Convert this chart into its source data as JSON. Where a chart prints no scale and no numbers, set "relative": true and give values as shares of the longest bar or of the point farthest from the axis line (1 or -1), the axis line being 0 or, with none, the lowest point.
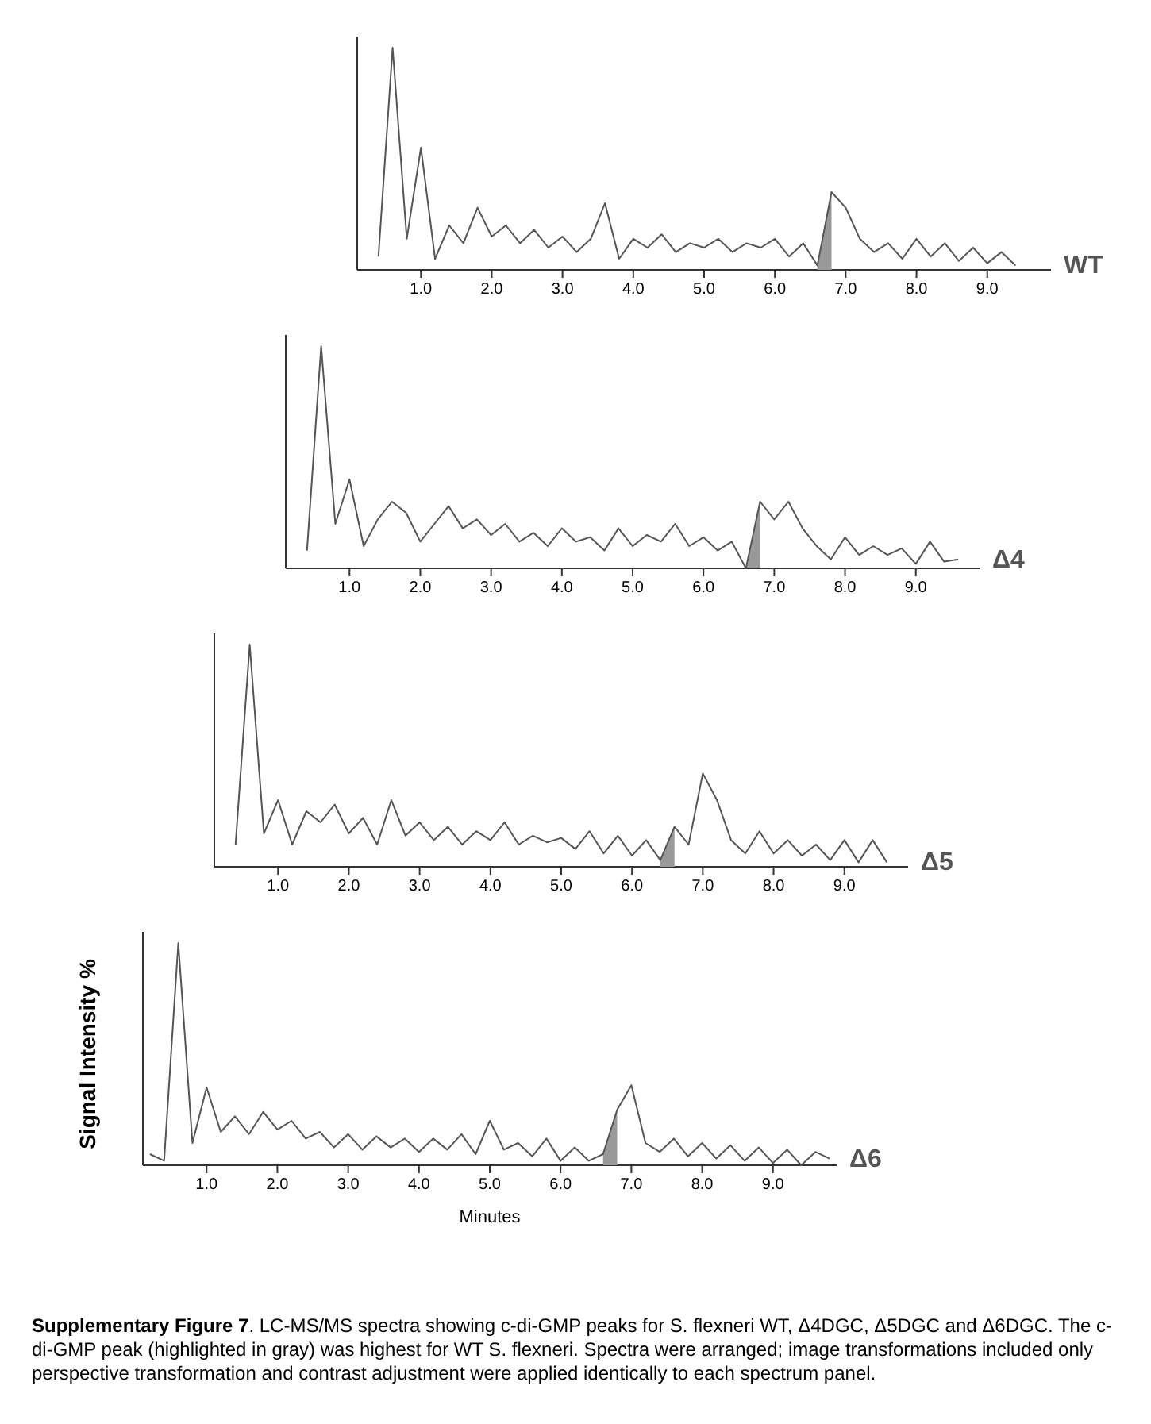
{
  "chart_data": [
    {
      "type": "line",
      "relative": true,
      "xlim": [
        0.1,
        9.9
      ],
      "xticks": [
        {
          "value": 1,
          "label": "1.0"
        },
        {
          "value": 2,
          "label": "2.0"
        },
        {
          "value": 3,
          "label": "3.0"
        },
        {
          "value": 4,
          "label": "4.0"
        },
        {
          "value": 5,
          "label": "5.0"
        },
        {
          "value": 6,
          "label": "6.0"
        },
        {
          "value": 7,
          "label": "7.0"
        },
        {
          "value": 8,
          "label": "8.0"
        },
        {
          "value": 9,
          "label": "9.0"
        }
      ],
      "x": [
        0.4,
        0.6,
        0.8,
        1.0,
        1.2,
        1.4,
        1.6,
        1.8,
        2.0,
        2.2,
        2.4,
        2.6,
        2.8,
        3.0,
        3.2,
        3.4,
        3.6,
        3.8,
        4.0,
        4.2,
        4.4,
        4.6,
        4.8,
        5.0,
        5.2,
        5.4,
        5.6,
        5.8,
        6.0,
        6.2,
        6.4,
        6.6,
        6.8,
        7.0,
        7.2,
        7.4,
        7.6,
        7.8,
        8.0,
        8.2,
        8.4,
        8.6,
        8.8,
        9.0,
        9.2,
        9.4
      ],
      "series": [
        {
          "name": "WT",
          "color": "#555555",
          "values": [
            0.06,
            1.0,
            0.14,
            0.55,
            0.05,
            0.2,
            0.12,
            0.28,
            0.15,
            0.2,
            0.12,
            0.18,
            0.1,
            0.15,
            0.08,
            0.14,
            0.3,
            0.05,
            0.14,
            0.1,
            0.16,
            0.08,
            0.12,
            0.1,
            0.14,
            0.08,
            0.12,
            0.1,
            0.14,
            0.06,
            0.12,
            0.02,
            0.35,
            0.28,
            0.14,
            0.08,
            0.12,
            0.05,
            0.14,
            0.06,
            0.12,
            0.04,
            0.1,
            0.03,
            0.08,
            0.02
          ]
        },
        {
          "type": "area",
          "color": "#999999",
          "x": [
            6.6,
            6.8
          ],
          "values": [
            0.02,
            0.35
          ]
        }
      ]
    },
    {
      "type": "line",
      "relative": true,
      "xlim": [
        0.1,
        9.9
      ],
      "xticks": [
        {
          "value": 1,
          "label": "1.0"
        },
        {
          "value": 2,
          "label": "2.0"
        },
        {
          "value": 3,
          "label": "3.0"
        },
        {
          "value": 4,
          "label": "4.0"
        },
        {
          "value": 5,
          "label": "5.0"
        },
        {
          "value": 6,
          "label": "6.0"
        },
        {
          "value": 7,
          "label": "7.0"
        },
        {
          "value": 8,
          "label": "8.0"
        },
        {
          "value": 9,
          "label": "9.0"
        }
      ],
      "x": [
        0.4,
        0.6,
        0.8,
        1.0,
        1.2,
        1.4,
        1.6,
        1.8,
        2.0,
        2.2,
        2.4,
        2.6,
        2.8,
        3.0,
        3.2,
        3.4,
        3.6,
        3.8,
        4.0,
        4.2,
        4.4,
        4.6,
        4.8,
        5.0,
        5.2,
        5.4,
        5.6,
        5.8,
        6.0,
        6.2,
        6.4,
        6.6,
        6.8,
        7.0,
        7.2,
        7.4,
        7.6,
        7.8,
        8.0,
        8.2,
        8.4,
        8.6,
        8.8,
        9.0,
        9.2,
        9.4,
        9.6
      ],
      "series": [
        {
          "name": "Δ4",
          "color": "#555555",
          "values": [
            0.08,
            1.0,
            0.2,
            0.4,
            0.1,
            0.22,
            0.3,
            0.25,
            0.12,
            0.2,
            0.28,
            0.18,
            0.22,
            0.15,
            0.2,
            0.12,
            0.16,
            0.1,
            0.18,
            0.12,
            0.14,
            0.08,
            0.18,
            0.1,
            0.15,
            0.12,
            0.2,
            0.1,
            0.14,
            0.08,
            0.12,
            0.0,
            0.3,
            0.22,
            0.3,
            0.18,
            0.1,
            0.04,
            0.14,
            0.06,
            0.1,
            0.06,
            0.09,
            0.02,
            0.12,
            0.03,
            0.04
          ]
        },
        {
          "type": "area",
          "color": "#999999",
          "x": [
            6.6,
            6.8
          ],
          "values": [
            0.0,
            0.3
          ]
        }
      ]
    },
    {
      "type": "line",
      "relative": true,
      "xlim": [
        0.1,
        9.9
      ],
      "xticks": [
        {
          "value": 1,
          "label": "1.0"
        },
        {
          "value": 2,
          "label": "2.0"
        },
        {
          "value": 3,
          "label": "3.0"
        },
        {
          "value": 4,
          "label": "4.0"
        },
        {
          "value": 5,
          "label": "5.0"
        },
        {
          "value": 6,
          "label": "6.0"
        },
        {
          "value": 7,
          "label": "7.0"
        },
        {
          "value": 8,
          "label": "8.0"
        },
        {
          "value": 9,
          "label": "9.0"
        }
      ],
      "x": [
        0.4,
        0.6,
        0.8,
        1.0,
        1.2,
        1.4,
        1.6,
        1.8,
        2.0,
        2.2,
        2.4,
        2.6,
        2.8,
        3.0,
        3.2,
        3.4,
        3.6,
        3.8,
        4.0,
        4.2,
        4.4,
        4.6,
        4.8,
        5.0,
        5.2,
        5.4,
        5.6,
        5.8,
        6.0,
        6.2,
        6.4,
        6.6,
        6.8,
        7.0,
        7.2,
        7.4,
        7.6,
        7.8,
        8.0,
        8.2,
        8.4,
        8.6,
        8.8,
        9.0,
        9.2,
        9.4,
        9.6
      ],
      "series": [
        {
          "name": "Δ5",
          "color": "#555555",
          "values": [
            0.1,
            1.0,
            0.15,
            0.3,
            0.1,
            0.25,
            0.2,
            0.28,
            0.15,
            0.22,
            0.1,
            0.3,
            0.14,
            0.2,
            0.12,
            0.18,
            0.1,
            0.16,
            0.12,
            0.2,
            0.1,
            0.14,
            0.11,
            0.13,
            0.08,
            0.16,
            0.06,
            0.14,
            0.05,
            0.12,
            0.03,
            0.18,
            0.1,
            0.42,
            0.3,
            0.12,
            0.06,
            0.16,
            0.06,
            0.12,
            0.05,
            0.1,
            0.03,
            0.12,
            0.02,
            0.12,
            0.02
          ]
        },
        {
          "type": "area",
          "color": "#999999",
          "x": [
            6.4,
            6.6
          ],
          "values": [
            0.03,
            0.18
          ]
        }
      ]
    },
    {
      "type": "line",
      "relative": true,
      "xlim": [
        0.1,
        9.9
      ],
      "title": "Supplementary Figure 7",
      "xlabel": "Minutes",
      "ylabel": "Signal Intensity %",
      "annotations": [
        ". LC-MS/MS spectra showing c-di-GMP peaks for S. flexneri WT, Δ4DGC, Δ5DGC and Δ6DGC. The c-di-GMP peak (highlighted in gray) was highest for WT S. flexneri. Spectra were arranged; image transformations included only perspective transformation and contrast adjustment were applied identically to each spectrum panel."
      ],
      "xticks": [
        {
          "value": 1,
          "label": "1.0"
        },
        {
          "value": 2,
          "label": "2.0"
        },
        {
          "value": 3,
          "label": "3.0"
        },
        {
          "value": 4,
          "label": "4.0"
        },
        {
          "value": 5,
          "label": "5.0"
        },
        {
          "value": 6,
          "label": "6.0"
        },
        {
          "value": 7,
          "label": "7.0"
        },
        {
          "value": 8,
          "label": "8.0"
        },
        {
          "value": 9,
          "label": "9.0"
        }
      ],
      "x": [
        0.2,
        0.4,
        0.6,
        0.8,
        1.0,
        1.2,
        1.4,
        1.6,
        1.8,
        2.0,
        2.2,
        2.4,
        2.6,
        2.8,
        3.0,
        3.2,
        3.4,
        3.6,
        3.8,
        4.0,
        4.2,
        4.4,
        4.6,
        4.8,
        5.0,
        5.2,
        5.4,
        5.6,
        5.8,
        6.0,
        6.2,
        6.4,
        6.6,
        6.8,
        7.0,
        7.2,
        7.4,
        7.6,
        7.8,
        8.0,
        8.2,
        8.4,
        8.6,
        8.8,
        9.0,
        9.2,
        9.4,
        9.6,
        9.8
      ],
      "series": [
        {
          "name": "Δ6",
          "color": "#555555",
          "values": [
            0.05,
            0.02,
            1.0,
            0.1,
            0.35,
            0.15,
            0.22,
            0.14,
            0.24,
            0.16,
            0.2,
            0.12,
            0.15,
            0.08,
            0.14,
            0.07,
            0.13,
            0.08,
            0.12,
            0.06,
            0.12,
            0.07,
            0.14,
            0.05,
            0.2,
            0.07,
            0.1,
            0.04,
            0.12,
            0.02,
            0.08,
            0.02,
            0.05,
            0.25,
            0.36,
            0.1,
            0.06,
            0.12,
            0.04,
            0.1,
            0.03,
            0.09,
            0.02,
            0.08,
            0.01,
            0.07,
            0.0,
            0.06,
            0.03
          ]
        },
        {
          "type": "area",
          "color": "#999999",
          "x": [
            6.6,
            6.8
          ],
          "values": [
            0.05,
            0.25
          ]
        }
      ]
    }
  ]
}
